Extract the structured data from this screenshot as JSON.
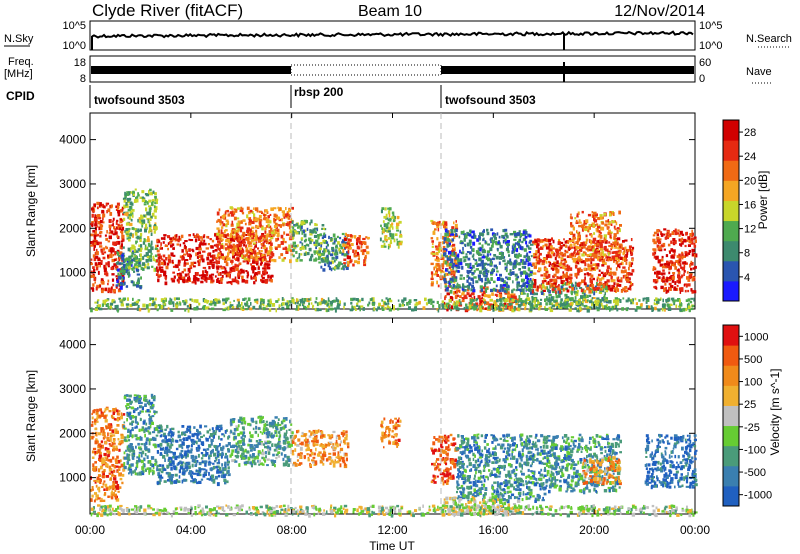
{
  "header": {
    "station": "Clyde River (fitACF)",
    "beam": "Beam 10",
    "date": "12/Nov/2014"
  },
  "panel_labels": {
    "nsky": "N.Sky",
    "nsearch": "N.Search",
    "freq": "Freq.",
    "freq_unit": "[MHz]",
    "nave": "Nave",
    "cpid": "CPID",
    "nsky_tick_top": "10^5",
    "nsky_tick_bottom": "10^0",
    "nsearch_tick_top": "10^5",
    "nsearch_tick_bottom": "10^0",
    "freq_tick_top": "18",
    "freq_tick_bottom": "8",
    "nave_tick_top": "60",
    "nave_tick_bottom": "0"
  },
  "cpid_segments": [
    {
      "label": "twofsound 3503",
      "start": 0
    },
    {
      "label": "rbsp 200",
      "start": 8
    },
    {
      "label": "twofsound 3503",
      "start": 14
    }
  ],
  "colors": {
    "power_scale": [
      "#1a1aff",
      "#2a55b0",
      "#3d8a6e",
      "#4faa4f",
      "#c8d62a",
      "#f5a623",
      "#f06a14",
      "#e62a12",
      "#d10000"
    ],
    "velocity_scale": [
      "#2060c0",
      "#3a7fb0",
      "#4a9b7a",
      "#66cc33",
      "#c0c0c0",
      "#f0b030",
      "#f08a1a",
      "#f05a10",
      "#e01010"
    ]
  },
  "chart_data": [
    {
      "type": "heatmap",
      "title": "",
      "xlabel": "Time UT",
      "ylabel": "Slant Range [km]",
      "xlim": [
        0,
        24
      ],
      "ylim": [
        180,
        4600
      ],
      "x_ticks": [
        "00:00",
        "04:00",
        "08:00",
        "12:00",
        "16:00",
        "20:00",
        "00:00"
      ],
      "y_ticks": [
        "1000",
        "2000",
        "3000",
        "4000"
      ],
      "colorbar_label": "Power [dB]",
      "colorbar_ticks": [
        "4",
        "8",
        "12",
        "16",
        "20",
        "24",
        "28"
      ],
      "colorbar_range": [
        0,
        30
      ],
      "scatter_regions": [
        {
          "t0": 0.0,
          "t1": 1.3,
          "r0": 600,
          "r1": 2600,
          "level": 0.85
        },
        {
          "t0": 1.0,
          "t1": 2.0,
          "r0": 700,
          "r1": 1500,
          "level": 0.25
        },
        {
          "t0": 1.3,
          "t1": 2.6,
          "r0": 1100,
          "r1": 2900,
          "level": 0.4
        },
        {
          "t0": 2.6,
          "t1": 7.2,
          "r0": 800,
          "r1": 1900,
          "level": 0.9
        },
        {
          "t0": 5.0,
          "t1": 8.0,
          "r0": 1300,
          "r1": 2500,
          "level": 0.7
        },
        {
          "t0": 8.0,
          "t1": 9.3,
          "r0": 1300,
          "r1": 2200,
          "level": 0.35
        },
        {
          "t0": 9.0,
          "t1": 10.2,
          "r0": 1100,
          "r1": 1900,
          "level": 0.3
        },
        {
          "t0": 10.0,
          "t1": 11.0,
          "r0": 1200,
          "r1": 1900,
          "level": 0.75
        },
        {
          "t0": 11.5,
          "t1": 12.3,
          "r0": 1600,
          "r1": 2500,
          "level": 0.45
        },
        {
          "t0": 13.5,
          "t1": 14.5,
          "r0": 700,
          "r1": 2200,
          "level": 0.7
        },
        {
          "t0": 14.0,
          "t1": 17.0,
          "r0": 180,
          "r1": 700,
          "level": 0.8
        },
        {
          "t0": 14.0,
          "t1": 17.5,
          "r0": 600,
          "r1": 2000,
          "level": 0.25
        },
        {
          "t0": 17.0,
          "t1": 20.5,
          "r0": 200,
          "r1": 800,
          "level": 0.35
        },
        {
          "t0": 17.5,
          "t1": 21.5,
          "r0": 600,
          "r1": 1800,
          "level": 0.8
        },
        {
          "t0": 19.0,
          "t1": 21.0,
          "r0": 1300,
          "r1": 2400,
          "level": 0.7
        },
        {
          "t0": 22.3,
          "t1": 24.0,
          "r0": 600,
          "r1": 2000,
          "level": 0.85
        },
        {
          "t0": 0.0,
          "t1": 24.0,
          "r0": 180,
          "r1": 450,
          "level": 0.4
        }
      ]
    },
    {
      "type": "heatmap",
      "title": "",
      "xlabel": "Time UT",
      "ylabel": "Slant Range [km]",
      "xlim": [
        0,
        24
      ],
      "ylim": [
        180,
        4600
      ],
      "x_ticks": [
        "00:00",
        "04:00",
        "08:00",
        "12:00",
        "16:00",
        "20:00",
        "00:00"
      ],
      "y_ticks": [
        "1000",
        "2000",
        "3000",
        "4000"
      ],
      "colorbar_label": "Velocity [m s^-1]",
      "colorbar_ticks": [
        "1000",
        "500",
        "100",
        "25",
        "-25",
        "-100",
        "-500",
        "-1000"
      ],
      "colorbar_range": [
        -1200,
        1200
      ],
      "scatter_regions": [
        {
          "t0": 0.0,
          "t1": 1.3,
          "r0": 500,
          "r1": 2600,
          "level": 0.75
        },
        {
          "t0": 1.3,
          "t1": 2.6,
          "r0": 1100,
          "r1": 2900,
          "level": 0.25
        },
        {
          "t0": 2.6,
          "t1": 5.5,
          "r0": 900,
          "r1": 2200,
          "level": 0.15
        },
        {
          "t0": 5.5,
          "t1": 8.0,
          "r0": 1300,
          "r1": 2400,
          "level": 0.3
        },
        {
          "t0": 8.0,
          "t1": 10.2,
          "r0": 1300,
          "r1": 2100,
          "level": 0.7
        },
        {
          "t0": 11.5,
          "t1": 12.3,
          "r0": 1700,
          "r1": 2400,
          "level": 0.75
        },
        {
          "t0": 13.5,
          "t1": 14.5,
          "r0": 900,
          "r1": 2000,
          "level": 0.85
        },
        {
          "t0": 14.5,
          "t1": 18.0,
          "r0": 500,
          "r1": 2000,
          "level": 0.2
        },
        {
          "t0": 14.0,
          "t1": 17.0,
          "r0": 180,
          "r1": 600,
          "level": 0.5
        },
        {
          "t0": 18.0,
          "t1": 21.0,
          "r0": 700,
          "r1": 2000,
          "level": 0.25
        },
        {
          "t0": 19.5,
          "t1": 21.0,
          "r0": 900,
          "r1": 1500,
          "level": 0.7
        },
        {
          "t0": 22.0,
          "t1": 24.0,
          "r0": 800,
          "r1": 2000,
          "level": 0.1
        },
        {
          "t0": 0.0,
          "t1": 24.0,
          "r0": 180,
          "r1": 400,
          "level": 0.45
        }
      ]
    }
  ]
}
